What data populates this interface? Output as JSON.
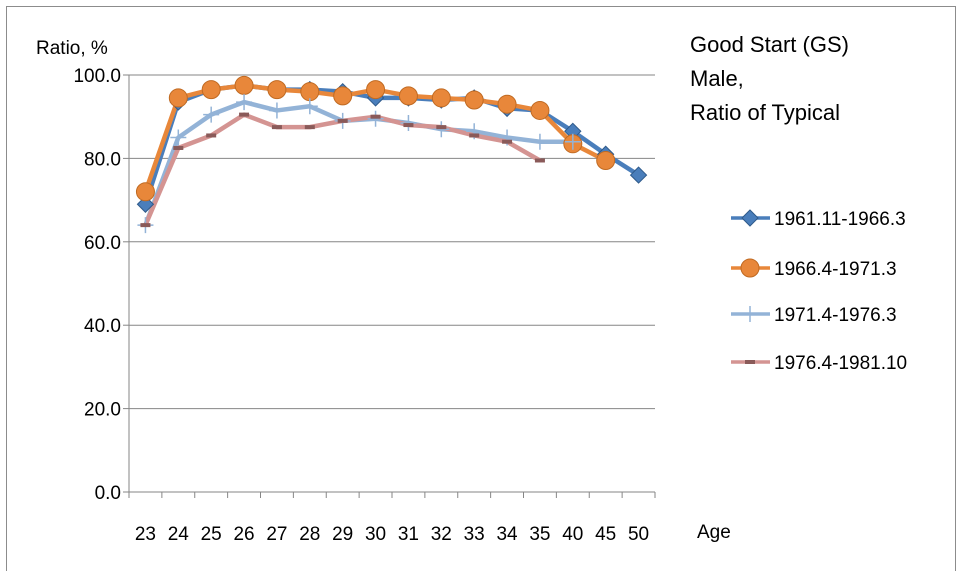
{
  "chart_data": {
    "type": "line",
    "title": [
      "Good Start (GS)",
      "Male,",
      "Ratio of Typical"
    ],
    "xlabel": "Age",
    "ylabel": "Ratio, %",
    "categories": [
      "23",
      "24",
      "25",
      "26",
      "27",
      "28",
      "29",
      "30",
      "31",
      "32",
      "33",
      "34",
      "35",
      "40",
      "45",
      "50"
    ],
    "ylim": [
      0,
      100
    ],
    "yticks": [
      "0.0",
      "20.0",
      "40.0",
      "60.0",
      "80.0",
      "100.0"
    ],
    "grid": "horizontal",
    "legend_position": "right",
    "series": [
      {
        "name": "1961.11-1966.3",
        "color": "#4a7ebb",
        "marker": "diamond",
        "values": [
          69,
          93.5,
          96.5,
          97.5,
          96.5,
          96.5,
          96,
          94.5,
          94.5,
          94,
          94.5,
          92,
          91.5,
          86.5,
          81,
          76
        ]
      },
      {
        "name": "1966.4-1971.3",
        "color": "#e8873a",
        "marker": "circle",
        "values": [
          72,
          94.5,
          96.5,
          97.5,
          96.5,
          96,
          95,
          96.5,
          95,
          94.5,
          94,
          93,
          91.5,
          83.5,
          79.5,
          null
        ]
      },
      {
        "name": "1971.4-1976.3",
        "color": "#93b3d7",
        "marker": "plus",
        "values": [
          64,
          85,
          90.5,
          93.5,
          91.5,
          92.5,
          89,
          89.5,
          88.5,
          87,
          86.5,
          85,
          84,
          84,
          null,
          null
        ]
      },
      {
        "name": "1976.4-1981.10",
        "color": "#d49492",
        "marker": "dash",
        "values": [
          64,
          82.5,
          85.5,
          90.5,
          87.5,
          87.5,
          89,
          90,
          88,
          87.5,
          85.5,
          84,
          79.5,
          null,
          null,
          null
        ]
      }
    ]
  }
}
